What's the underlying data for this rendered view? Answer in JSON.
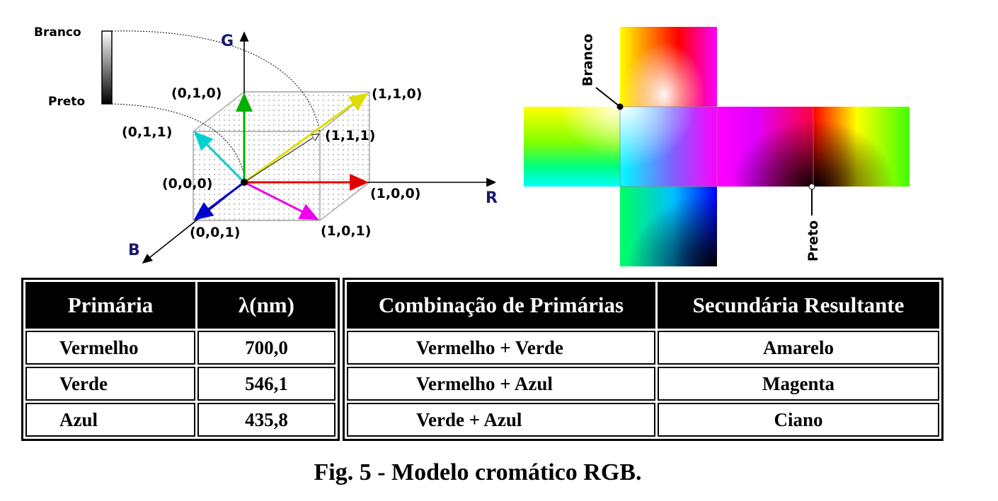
{
  "cube": {
    "axes": {
      "g": "G",
      "r": "R",
      "b": "B"
    },
    "vertices": {
      "v010": "(0,1,0)",
      "v110": "(1,1,0)",
      "v011": "(0,1,1)",
      "v111": "(1,1,1)",
      "v000": "(0,0,0)",
      "v100": "(1,0,0)",
      "v001": "(0,0,1)",
      "v101": "(1,0,1)"
    },
    "gray_scale": {
      "top": "Branco",
      "bottom": "Preto"
    }
  },
  "net": {
    "white_label": "Branco",
    "black_label": "Preto"
  },
  "table_primaries": {
    "headers": [
      "Primária",
      "λ(nm)"
    ],
    "rows": [
      [
        "Vermelho",
        "700,0"
      ],
      [
        "Verde",
        "546,1"
      ],
      [
        "Azul",
        "435,8"
      ]
    ]
  },
  "table_secondaries": {
    "headers": [
      "Combinação de Primárias",
      "Secundária Resultante"
    ],
    "rows": [
      [
        "Vermelho + Verde",
        "Amarelo"
      ],
      [
        "Vermelho + Azul",
        "Magenta"
      ],
      [
        "Verde + Azul",
        "Ciano"
      ]
    ]
  },
  "caption": "Fig. 5 - Modelo cromático RGB.",
  "colors": {
    "red": "#ff0000",
    "green": "#00ff00",
    "blue": "#0000ff",
    "cyan": "#00ffff",
    "magenta": "#ff00ff",
    "yellow": "#ffff00",
    "white": "#ffffff",
    "black": "#000000"
  }
}
